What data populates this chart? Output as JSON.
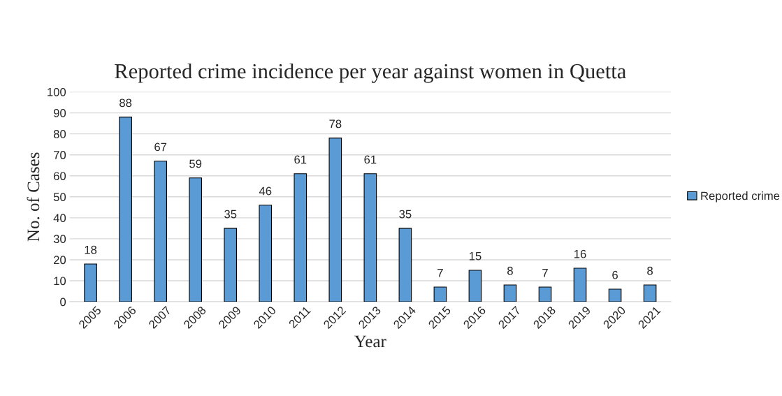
{
  "chart_data": {
    "type": "bar",
    "title": "Reported crime incidence per year against women in Quetta",
    "xlabel": "Year",
    "ylabel": "No. of Cases",
    "categories": [
      "2005",
      "2006",
      "2007",
      "2008",
      "2009",
      "2010",
      "2011",
      "2012",
      "2013",
      "2014",
      "2015",
      "2016",
      "2017",
      "2018",
      "2019",
      "2020",
      "2021"
    ],
    "series": [
      {
        "name": "Reported crime",
        "color": "#5b9bd5",
        "values": [
          18,
          88,
          67,
          59,
          35,
          46,
          61,
          78,
          61,
          35,
          7,
          15,
          8,
          7,
          16,
          6,
          8
        ]
      }
    ],
    "ylim": [
      0,
      100
    ],
    "yticks": [
      0,
      10,
      20,
      30,
      40,
      50,
      60,
      70,
      80,
      90,
      100
    ],
    "grid": "y",
    "legend": "right",
    "data_labels": true
  }
}
